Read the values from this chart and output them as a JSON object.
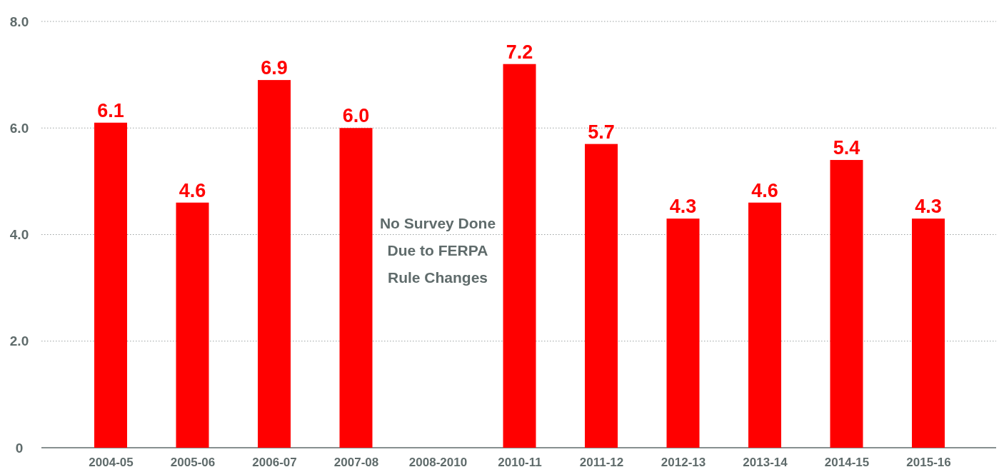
{
  "chart_data": {
    "type": "bar",
    "categories": [
      "2004-05",
      "2005-06",
      "2006-07",
      "2007-08",
      "2008-2010",
      "2010-11",
      "2011-12",
      "2012-13",
      "2013-14",
      "2014-15",
      "2015-16"
    ],
    "values": [
      6.1,
      4.6,
      6.9,
      6.0,
      null,
      7.2,
      5.7,
      4.3,
      4.6,
      5.4,
      4.3
    ],
    "color": "#ff0000",
    "ylim": [
      0,
      8
    ],
    "yticks": [
      0,
      {
        "value": 2,
        "label": "2.0"
      },
      {
        "value": 4,
        "label": "4.0"
      },
      {
        "value": 6,
        "label": "6.0"
      },
      {
        "value": 8,
        "label": "8.0"
      }
    ],
    "grid": "y",
    "value_labels": [
      "6.1",
      "4.6",
      "6.9",
      "6.0",
      null,
      "7.2",
      "5.7",
      "4.3",
      "4.6",
      "5.4",
      "4.3"
    ],
    "annotations": [
      "No Survey Done\nDue to FERPA\nRule Changes"
    ]
  }
}
